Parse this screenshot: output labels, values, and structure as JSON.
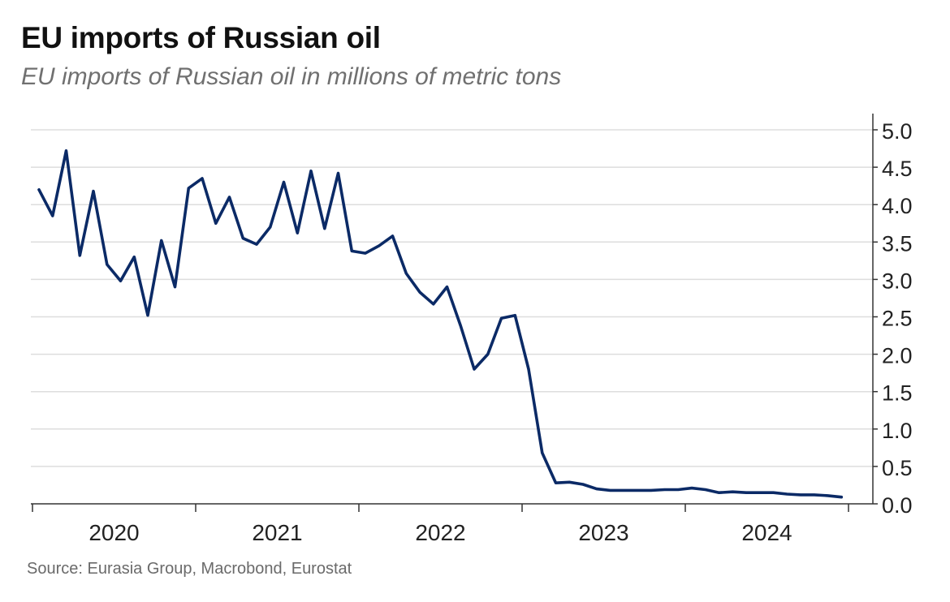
{
  "header": {
    "title": "EU imports of Russian oil",
    "subtitle": "EU imports of Russian oil in millions of metric tons"
  },
  "footer": {
    "source": "Source: Eurasia Group, Macrobond, Eurostat"
  },
  "colors": {
    "line": "#0b2a66",
    "grid": "#dddddd",
    "axis": "#333333"
  },
  "chart_data": {
    "type": "line",
    "title": "EU imports of Russian oil",
    "subtitle": "EU imports of Russian oil in millions of metric tons",
    "xlabel": "",
    "ylabel": "",
    "ylim": [
      0,
      5.0
    ],
    "y_ticks": [
      "0.0",
      "0.5",
      "1.0",
      "1.5",
      "2.0",
      "2.5",
      "3.0",
      "3.5",
      "4.0",
      "4.5",
      "5.0"
    ],
    "x_year_labels": [
      "2020",
      "2021",
      "2022",
      "2023",
      "2024"
    ],
    "grid": true,
    "y_axis_position": "right",
    "frequency": "monthly",
    "start": "2020-01",
    "series": [
      {
        "name": "EU imports of Russian oil",
        "values": [
          4.2,
          3.85,
          4.72,
          3.32,
          4.18,
          3.2,
          2.98,
          3.3,
          2.52,
          3.52,
          2.9,
          4.22,
          4.35,
          3.75,
          4.1,
          3.55,
          3.47,
          3.7,
          4.3,
          3.62,
          4.45,
          3.68,
          4.42,
          3.38,
          3.35,
          3.45,
          3.58,
          3.08,
          2.83,
          2.67,
          2.9,
          2.38,
          1.8,
          2.0,
          2.48,
          2.52,
          1.8,
          0.68,
          0.28,
          0.29,
          0.26,
          0.2,
          0.18,
          0.18,
          0.18,
          0.18,
          0.19,
          0.19,
          0.21,
          0.19,
          0.15,
          0.16,
          0.15,
          0.15,
          0.15,
          0.13,
          0.12,
          0.12,
          0.11,
          0.09
        ]
      }
    ]
  }
}
